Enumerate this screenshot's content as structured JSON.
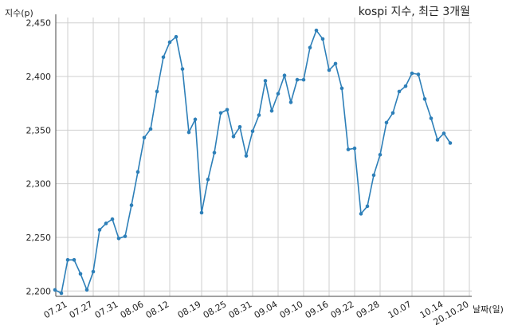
{
  "chart_data": {
    "type": "line",
    "title": "kospi 지수, 최근 3개월",
    "xlabel": "날짜(일)",
    "ylabel": "지수(p)",
    "ylim": [
      2195,
      2455
    ],
    "grid": true,
    "color": "#2d7fb8",
    "y_ticks": [
      2200,
      2250,
      2300,
      2350,
      2400,
      2450
    ],
    "y_tick_labels": [
      "2,200",
      "2,250",
      "2,300",
      "2,350",
      "2,400",
      "2,450"
    ],
    "x_tick_labels": [
      "07.21",
      "07.27",
      "07.31",
      "08.06",
      "08.12",
      "08.19",
      "08.25",
      "08.31",
      "09.04",
      "09.10",
      "09.16",
      "09.22",
      "09.28",
      "10.07",
      "10.14",
      "20.10.20"
    ],
    "x_tick_index": [
      2,
      6,
      10,
      14,
      18,
      23,
      27,
      31,
      35,
      39,
      43,
      47,
      51,
      56,
      61,
      65
    ],
    "values": [
      2201,
      2198,
      2229,
      2229,
      2216,
      2201,
      2218,
      2257,
      2263,
      2267,
      2249,
      2251,
      2280,
      2311,
      2343,
      2351,
      2386,
      2418,
      2432,
      2437,
      2407,
      2348,
      2360,
      2273,
      2304,
      2329,
      2366,
      2369,
      2344,
      2353,
      2326,
      2349,
      2364,
      2396,
      2368,
      2384,
      2401,
      2376,
      2397,
      2397,
      2427,
      2443,
      2435,
      2406,
      2412,
      2389,
      2332,
      2333,
      2272,
      2279,
      2308,
      2327,
      2357,
      2366,
      2386,
      2391,
      2403,
      2402,
      2379,
      2361,
      2341,
      2347,
      2338
    ]
  }
}
